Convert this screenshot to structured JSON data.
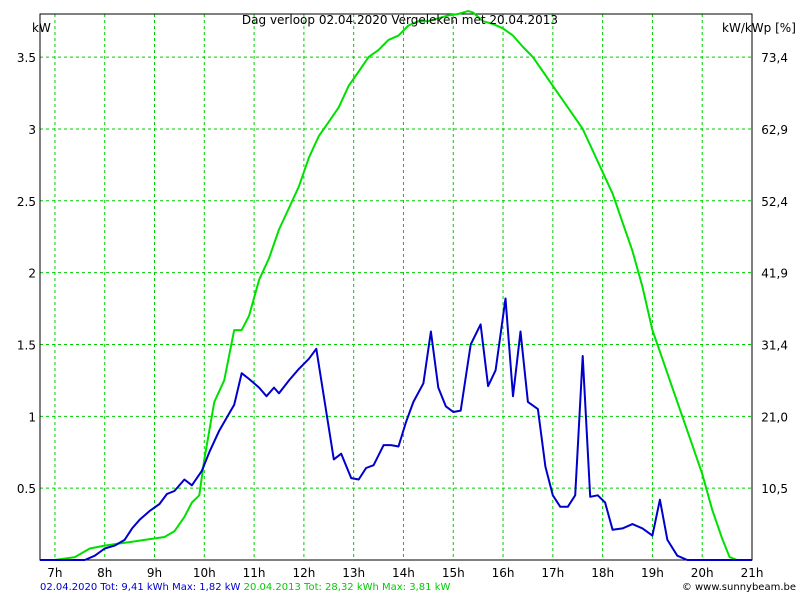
{
  "chart_data": {
    "type": "line",
    "title": "Dag  verloop 02.04.2020    Vergeleken met 20.04.2013",
    "ylabel_left": "kW",
    "ylabel_right": "kW/kWp [%]",
    "xlim": [
      6.7,
      21
    ],
    "ylim": [
      0,
      3.8
    ],
    "x_ticks": [
      {
        "x": 7,
        "label": "7h"
      },
      {
        "x": 8,
        "label": "8h"
      },
      {
        "x": 9,
        "label": "9h"
      },
      {
        "x": 10,
        "label": "10h"
      },
      {
        "x": 11,
        "label": "11h"
      },
      {
        "x": 12,
        "label": "12h"
      },
      {
        "x": 13,
        "label": "13h"
      },
      {
        "x": 14,
        "label": "14h"
      },
      {
        "x": 15,
        "label": "15h"
      },
      {
        "x": 16,
        "label": "16h"
      },
      {
        "x": 17,
        "label": "17h"
      },
      {
        "x": 18,
        "label": "18h"
      },
      {
        "x": 19,
        "label": "19h"
      },
      {
        "x": 20,
        "label": "20h"
      },
      {
        "x": 21,
        "label": "21h"
      }
    ],
    "y_ticks_left": [
      {
        "y": 0.5,
        "label": "0.5"
      },
      {
        "y": 1,
        "label": "1"
      },
      {
        "y": 1.5,
        "label": "1.5"
      },
      {
        "y": 2,
        "label": "2"
      },
      {
        "y": 2.5,
        "label": "2.5"
      },
      {
        "y": 3,
        "label": "3"
      },
      {
        "y": 3.5,
        "label": "3.5"
      }
    ],
    "y_ticks_right": [
      {
        "y": 0.5,
        "label": "10,5"
      },
      {
        "y": 1,
        "label": "21,0"
      },
      {
        "y": 1.5,
        "label": "31,4"
      },
      {
        "y": 2,
        "label": "41,9"
      },
      {
        "y": 2.5,
        "label": "52,4"
      },
      {
        "y": 3,
        "label": "62,9"
      },
      {
        "y": 3.5,
        "label": "73,4"
      }
    ],
    "grid": true,
    "series": [
      {
        "name": "20.04.2013",
        "color": "#00e000",
        "points": [
          [
            6.7,
            0
          ],
          [
            7.0,
            0
          ],
          [
            7.4,
            0.02
          ],
          [
            7.7,
            0.08
          ],
          [
            8.0,
            0.1
          ],
          [
            8.4,
            0.12
          ],
          [
            8.8,
            0.14
          ],
          [
            9.2,
            0.16
          ],
          [
            9.4,
            0.2
          ],
          [
            9.6,
            0.3
          ],
          [
            9.75,
            0.4
          ],
          [
            9.9,
            0.45
          ],
          [
            10.0,
            0.7
          ],
          [
            10.2,
            1.1
          ],
          [
            10.4,
            1.25
          ],
          [
            10.6,
            1.6
          ],
          [
            10.75,
            1.6
          ],
          [
            10.9,
            1.7
          ],
          [
            11.1,
            1.95
          ],
          [
            11.3,
            2.1
          ],
          [
            11.5,
            2.3
          ],
          [
            11.7,
            2.45
          ],
          [
            11.9,
            2.6
          ],
          [
            12.1,
            2.8
          ],
          [
            12.3,
            2.95
          ],
          [
            12.5,
            3.05
          ],
          [
            12.7,
            3.15
          ],
          [
            12.9,
            3.3
          ],
          [
            13.1,
            3.4
          ],
          [
            13.3,
            3.5
          ],
          [
            13.5,
            3.55
          ],
          [
            13.7,
            3.62
          ],
          [
            13.9,
            3.65
          ],
          [
            14.1,
            3.72
          ],
          [
            14.3,
            3.75
          ],
          [
            14.5,
            3.75
          ],
          [
            14.7,
            3.77
          ],
          [
            14.9,
            3.79
          ],
          [
            15.1,
            3.8
          ],
          [
            15.3,
            3.82
          ],
          [
            15.4,
            3.81
          ],
          [
            15.6,
            3.75
          ],
          [
            15.8,
            3.73
          ],
          [
            16.0,
            3.7
          ],
          [
            16.2,
            3.65
          ],
          [
            16.4,
            3.57
          ],
          [
            16.6,
            3.5
          ],
          [
            16.8,
            3.4
          ],
          [
            17.0,
            3.3
          ],
          [
            17.2,
            3.2
          ],
          [
            17.4,
            3.1
          ],
          [
            17.6,
            3.0
          ],
          [
            17.8,
            2.85
          ],
          [
            18.0,
            2.7
          ],
          [
            18.2,
            2.55
          ],
          [
            18.4,
            2.35
          ],
          [
            18.6,
            2.15
          ],
          [
            18.8,
            1.9
          ],
          [
            19.0,
            1.6
          ],
          [
            19.2,
            1.4
          ],
          [
            19.4,
            1.2
          ],
          [
            19.6,
            1.0
          ],
          [
            19.8,
            0.8
          ],
          [
            20.0,
            0.6
          ],
          [
            20.2,
            0.35
          ],
          [
            20.4,
            0.15
          ],
          [
            20.55,
            0.02
          ],
          [
            20.7,
            0
          ],
          [
            21.0,
            0
          ]
        ]
      },
      {
        "name": "02.04.2020",
        "color": "#0000cc",
        "points": [
          [
            6.7,
            0
          ],
          [
            7.6,
            0
          ],
          [
            7.8,
            0.03
          ],
          [
            8.0,
            0.08
          ],
          [
            8.2,
            0.1
          ],
          [
            8.4,
            0.14
          ],
          [
            8.55,
            0.22
          ],
          [
            8.7,
            0.28
          ],
          [
            8.9,
            0.34
          ],
          [
            9.1,
            0.39
          ],
          [
            9.25,
            0.46
          ],
          [
            9.4,
            0.48
          ],
          [
            9.6,
            0.56
          ],
          [
            9.75,
            0.52
          ],
          [
            9.95,
            0.62
          ],
          [
            10.1,
            0.75
          ],
          [
            10.3,
            0.9
          ],
          [
            10.5,
            1.02
          ],
          [
            10.6,
            1.08
          ],
          [
            10.75,
            1.3
          ],
          [
            10.9,
            1.26
          ],
          [
            11.1,
            1.2
          ],
          [
            11.25,
            1.14
          ],
          [
            11.4,
            1.2
          ],
          [
            11.5,
            1.16
          ],
          [
            11.7,
            1.25
          ],
          [
            11.9,
            1.33
          ],
          [
            12.1,
            1.4
          ],
          [
            12.25,
            1.47
          ],
          [
            12.45,
            1.03
          ],
          [
            12.6,
            0.7
          ],
          [
            12.75,
            0.74
          ],
          [
            12.95,
            0.57
          ],
          [
            13.1,
            0.56
          ],
          [
            13.25,
            0.64
          ],
          [
            13.4,
            0.66
          ],
          [
            13.6,
            0.8
          ],
          [
            13.75,
            0.8
          ],
          [
            13.9,
            0.79
          ],
          [
            14.05,
            0.96
          ],
          [
            14.2,
            1.1
          ],
          [
            14.4,
            1.23
          ],
          [
            14.55,
            1.59
          ],
          [
            14.7,
            1.2
          ],
          [
            14.85,
            1.07
          ],
          [
            15.0,
            1.03
          ],
          [
            15.15,
            1.04
          ],
          [
            15.35,
            1.5
          ],
          [
            15.55,
            1.64
          ],
          [
            15.7,
            1.21
          ],
          [
            15.85,
            1.32
          ],
          [
            16.05,
            1.82
          ],
          [
            16.2,
            1.14
          ],
          [
            16.35,
            1.59
          ],
          [
            16.5,
            1.1
          ],
          [
            16.7,
            1.05
          ],
          [
            16.85,
            0.65
          ],
          [
            17.0,
            0.45
          ],
          [
            17.15,
            0.37
          ],
          [
            17.3,
            0.37
          ],
          [
            17.45,
            0.45
          ],
          [
            17.6,
            1.42
          ],
          [
            17.75,
            0.44
          ],
          [
            17.9,
            0.45
          ],
          [
            18.05,
            0.4
          ],
          [
            18.2,
            0.21
          ],
          [
            18.4,
            0.22
          ],
          [
            18.6,
            0.25
          ],
          [
            18.8,
            0.22
          ],
          [
            19.0,
            0.17
          ],
          [
            19.15,
            0.42
          ],
          [
            19.3,
            0.14
          ],
          [
            19.5,
            0.03
          ],
          [
            19.7,
            0
          ],
          [
            20.2,
            0
          ],
          [
            21.0,
            0
          ]
        ]
      }
    ]
  },
  "footer": {
    "left_blue": "02.04.2020 Tot: 9,41 kWh Max: 1,82 kW",
    "left_green": "20.04.2013 Tot: 28,32 kWh Max: 3,81 kW",
    "right": "© www.sunnybeam.be"
  }
}
